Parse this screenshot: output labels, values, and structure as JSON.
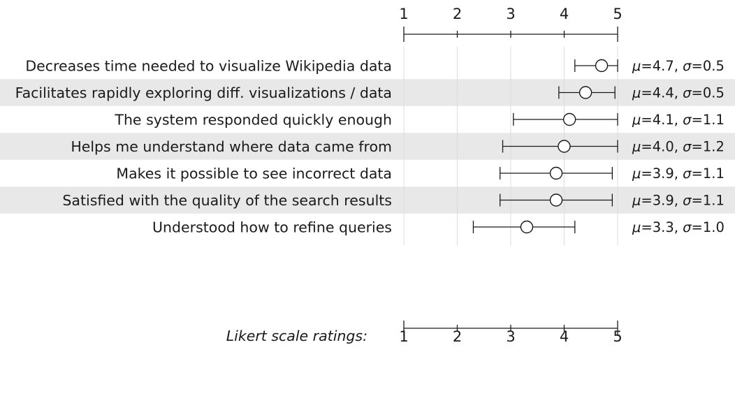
{
  "chart_data": {
    "type": "scatter",
    "xlim": [
      1,
      5
    ],
    "ticks": [
      "1",
      "2",
      "3",
      "4",
      "5"
    ],
    "axis_label": "Likert scale ratings:",
    "marker": "open-circle-with-error-bar",
    "band_color": "#e8e8e8",
    "line_color": "#1a1a1a",
    "rows": [
      {
        "label": "Decreases time needed to visualize Wikipedia data",
        "mean": 4.7,
        "lo": 4.2,
        "hi": 5.0,
        "mean_text": "4.7",
        "sd_text": "0.5"
      },
      {
        "label": "Facilitates rapidly exploring diff. visualizations / data",
        "mean": 4.4,
        "lo": 3.9,
        "hi": 4.95,
        "mean_text": "4.4",
        "sd_text": "0.5"
      },
      {
        "label": "The system responded quickly enough",
        "mean": 4.1,
        "lo": 3.05,
        "hi": 5.0,
        "mean_text": "4.1",
        "sd_text": "1.1"
      },
      {
        "label": "Helps me understand where data came from",
        "mean": 4.0,
        "lo": 2.85,
        "hi": 5.0,
        "mean_text": "4.0",
        "sd_text": "1.2"
      },
      {
        "label": "Makes it possible to see incorrect data",
        "mean": 3.85,
        "lo": 2.8,
        "hi": 4.9,
        "mean_text": "3.9",
        "sd_text": "1.1"
      },
      {
        "label": "Satisfied with the quality of the search results",
        "mean": 3.85,
        "lo": 2.8,
        "hi": 4.9,
        "mean_text": "3.9",
        "sd_text": "1.1"
      },
      {
        "label": "Understood how to refine queries",
        "mean": 3.3,
        "lo": 2.3,
        "hi": 4.2,
        "mean_text": "3.3",
        "sd_text": "1.0"
      }
    ]
  }
}
